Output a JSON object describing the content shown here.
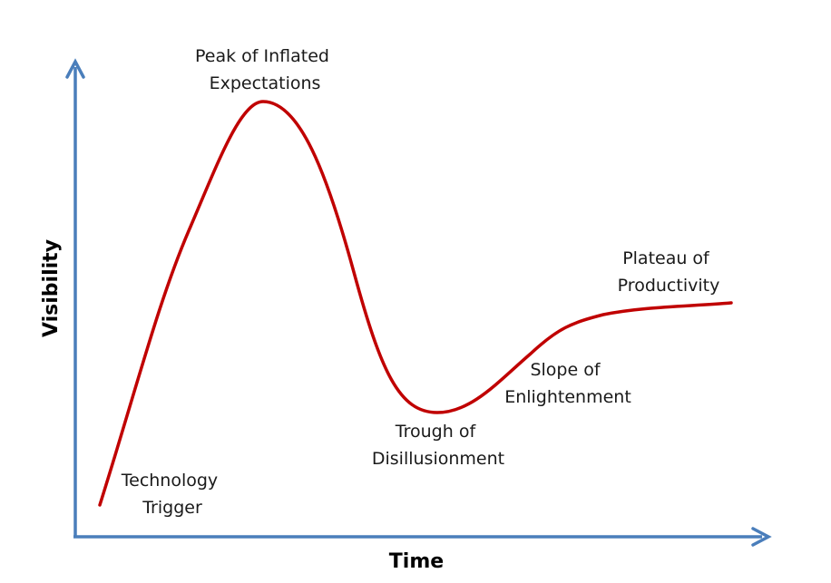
{
  "axes": {
    "x_label": "Time",
    "y_label": "Visibility",
    "color": "#4a7ebb"
  },
  "curve": {
    "color": "#c00000"
  },
  "phases": [
    {
      "id": "technology-trigger",
      "lines": [
        "Technology",
        "Trigger"
      ]
    },
    {
      "id": "peak-of-inflated-expectations",
      "lines": [
        "Peak of Inflated",
        "Expectations"
      ]
    },
    {
      "id": "trough-of-disillusionment",
      "lines": [
        "Trough of",
        "Disillusionment"
      ]
    },
    {
      "id": "slope-of-enlightenment",
      "lines": [
        "Slope of",
        "Enlightenment"
      ]
    },
    {
      "id": "plateau-of-productivity",
      "lines": [
        "Plateau of",
        "Productivity"
      ]
    }
  ]
}
